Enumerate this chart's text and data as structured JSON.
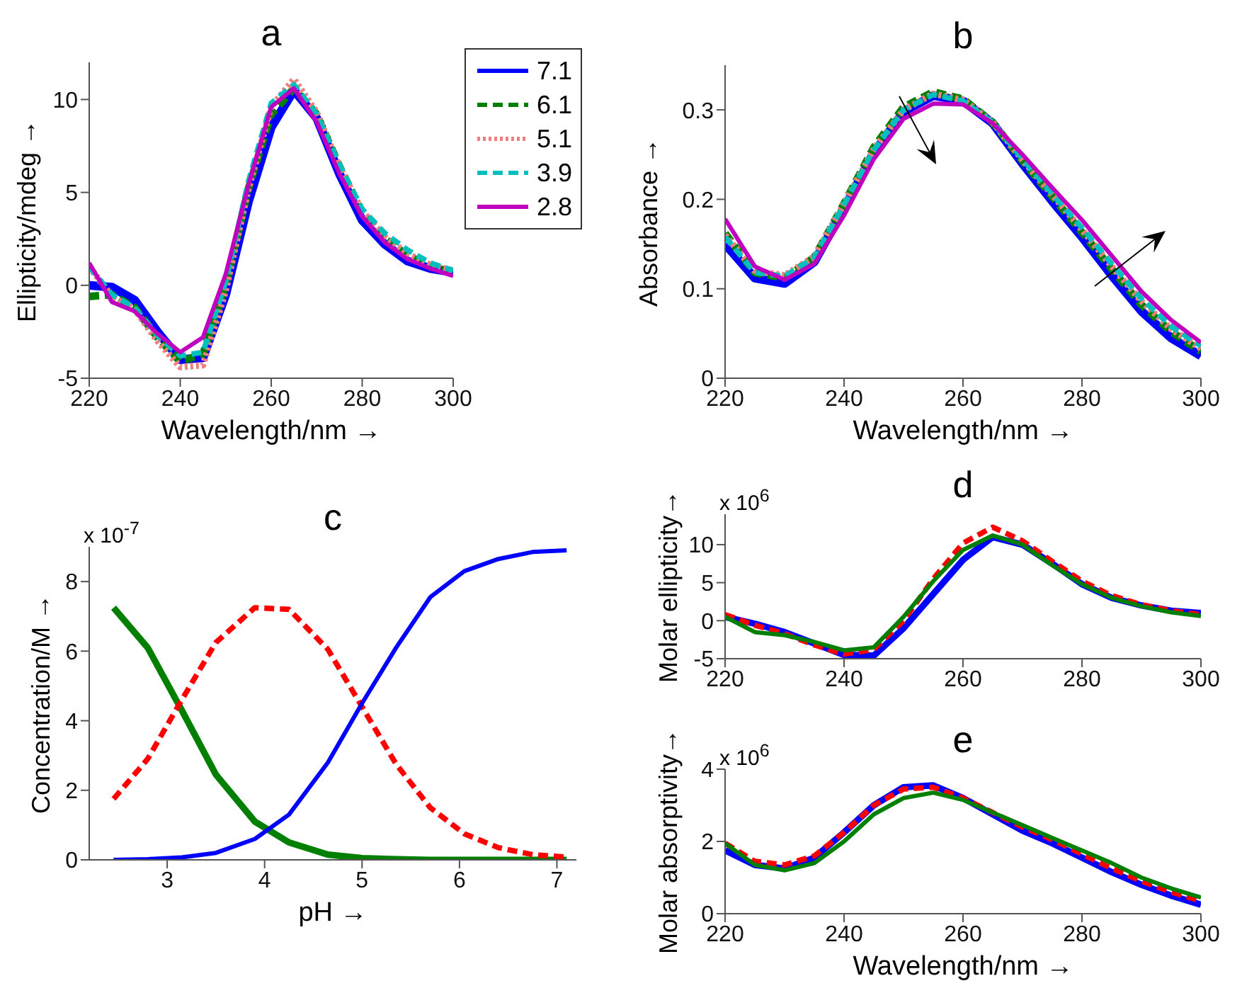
{
  "chart_data": [
    {
      "type": "line",
      "title": "a",
      "xlabel": "Wavelength/nm →",
      "ylabel": "Ellipticity/mdeg →",
      "x": [
        220,
        225,
        230,
        235,
        240,
        245,
        250,
        255,
        260,
        265,
        270,
        275,
        280,
        285,
        290,
        295,
        300
      ],
      "xlim": [
        220,
        300
      ],
      "xticks": [
        220,
        240,
        260,
        280,
        300
      ],
      "ylim": [
        -5,
        12
      ],
      "yticks": [
        -5,
        0,
        5,
        10
      ],
      "legend": "right",
      "series": [
        {
          "name": "7.1",
          "color": "#0000ff",
          "line_style": "solid",
          "values": [
            0,
            -0.1,
            -0.8,
            -2.5,
            -4.0,
            -3.9,
            -0.5,
            4.5,
            8.5,
            10.5,
            9.0,
            6.0,
            3.5,
            2.2,
            1.3,
            0.9,
            0.7
          ]
        },
        {
          "name": "6.1",
          "color": "#007f00",
          "line_style": "dashed",
          "values": [
            -0.6,
            -0.5,
            -1.2,
            -2.8,
            -4.1,
            -3.7,
            0,
            5.2,
            9.2,
            10.6,
            9.2,
            6.4,
            3.9,
            2.5,
            1.6,
            1.0,
            0.7
          ]
        },
        {
          "name": "5.1",
          "color": "#f08080",
          "line_style": "dotted",
          "values": [
            1,
            -0.6,
            -1.3,
            -3.0,
            -4.4,
            -4.3,
            -0.3,
            5.2,
            9.6,
            11.1,
            9.3,
            6.4,
            4.0,
            2.6,
            1.7,
            1.1,
            0.8
          ]
        },
        {
          "name": "3.9",
          "color": "#00bfbf",
          "line_style": "dashed",
          "values": [
            1,
            -0.5,
            -1.2,
            -2.7,
            -3.8,
            -3.6,
            0.2,
            5.6,
            9.8,
            10.8,
            9.2,
            6.5,
            4.1,
            2.8,
            1.9,
            1.2,
            0.8
          ]
        },
        {
          "name": "2.8",
          "color": "#bf00bf",
          "line_style": "solid",
          "values": [
            1.2,
            -0.9,
            -1.4,
            -2.6,
            -3.6,
            -2.8,
            0.6,
            5.4,
            9.6,
            10.6,
            8.8,
            6.0,
            3.7,
            2.3,
            1.4,
            0.9,
            0.5
          ]
        }
      ]
    },
    {
      "type": "line",
      "title": "b",
      "xlabel": "Wavelength/nm →",
      "ylabel": "Absorbance →",
      "x": [
        220,
        225,
        230,
        235,
        240,
        245,
        250,
        255,
        260,
        265,
        270,
        275,
        280,
        285,
        290,
        295,
        300
      ],
      "xlim": [
        220,
        300
      ],
      "xticks": [
        220,
        240,
        260,
        280,
        300
      ],
      "ylim": [
        0,
        0.35
      ],
      "yticks": [
        0,
        0.1,
        0.2,
        0.3
      ],
      "series": [
        {
          "color": "#0000ff",
          "line_style": "solid",
          "values": [
            0.15,
            0.112,
            0.106,
            0.13,
            0.19,
            0.252,
            0.298,
            0.316,
            0.31,
            0.285,
            0.24,
            0.198,
            0.158,
            0.115,
            0.075,
            0.045,
            0.025
          ]
        },
        {
          "color": "#007f00",
          "line_style": "dashed",
          "values": [
            0.162,
            0.118,
            0.112,
            0.135,
            0.195,
            0.258,
            0.303,
            0.32,
            0.312,
            0.286,
            0.243,
            0.203,
            0.163,
            0.122,
            0.082,
            0.052,
            0.03
          ]
        },
        {
          "color": "#f08080",
          "line_style": "dotted",
          "values": [
            0.16,
            0.12,
            0.115,
            0.136,
            0.195,
            0.256,
            0.3,
            0.318,
            0.311,
            0.286,
            0.244,
            0.205,
            0.166,
            0.125,
            0.086,
            0.055,
            0.033
          ]
        },
        {
          "color": "#00bfbf",
          "line_style": "dashed",
          "values": [
            0.158,
            0.118,
            0.114,
            0.135,
            0.194,
            0.255,
            0.3,
            0.317,
            0.31,
            0.286,
            0.245,
            0.206,
            0.168,
            0.128,
            0.089,
            0.058,
            0.036
          ]
        },
        {
          "color": "#bf00bf",
          "line_style": "solid",
          "values": [
            0.178,
            0.125,
            0.11,
            0.128,
            0.182,
            0.245,
            0.29,
            0.307,
            0.306,
            0.285,
            0.25,
            0.213,
            0.177,
            0.137,
            0.097,
            0.065,
            0.04
          ]
        }
      ]
    },
    {
      "type": "line",
      "title": "c",
      "xlabel": "pH →",
      "ylabel": "Concentration/M →",
      "annotations": [
        "x 10$^{-7}$"
      ],
      "x": [
        2.45,
        2.8,
        3.15,
        3.5,
        3.9,
        4.25,
        4.65,
        5.0,
        5.35,
        5.7,
        6.05,
        6.4,
        6.75,
        7.1
      ],
      "xlim": [
        2.2,
        7.2
      ],
      "xticks": [
        3,
        4,
        5,
        6,
        7
      ],
      "ylim": [
        0,
        9
      ],
      "yticks": [
        0,
        2,
        4,
        6,
        8
      ],
      "series": [
        {
          "color": "#007f00",
          "line_style": "solid",
          "values": [
            7.25,
            6.1,
            4.3,
            2.45,
            1.1,
            0.5,
            0.15,
            0.05,
            0.02,
            0,
            0,
            0,
            0,
            0
          ]
        },
        {
          "color": "#ff0000",
          "line_style": "dashed",
          "values": [
            1.75,
            2.9,
            4.6,
            6.25,
            7.25,
            7.2,
            6.05,
            4.4,
            2.75,
            1.5,
            0.75,
            0.35,
            0.15,
            0.08
          ]
        },
        {
          "color": "#0000ff",
          "line_style": "solid",
          "values": [
            0,
            0.02,
            0.07,
            0.2,
            0.6,
            1.3,
            2.8,
            4.5,
            6.1,
            7.55,
            8.3,
            8.65,
            8.85,
            8.9
          ]
        }
      ]
    },
    {
      "type": "line",
      "title": "d",
      "ylabel": "Molar ellipticity→",
      "annotations": [
        "x 10$^{6}$"
      ],
      "x": [
        220,
        225,
        230,
        235,
        240,
        245,
        250,
        255,
        260,
        265,
        270,
        275,
        280,
        285,
        290,
        295,
        300
      ],
      "xlim": [
        220,
        300
      ],
      "xticks": [
        220,
        240,
        260,
        280,
        300
      ],
      "ylim": [
        -5,
        14
      ],
      "yticks": [
        -5,
        0,
        5,
        10
      ],
      "series": [
        {
          "color": "#0000ff",
          "line_style": "solid",
          "values": [
            0.5,
            -0.4,
            -1.5,
            -3.0,
            -4.5,
            -4.6,
            -1.0,
            3.5,
            8.0,
            11.0,
            10.0,
            7.5,
            4.8,
            3.0,
            2.0,
            1.3,
            1.0
          ]
        },
        {
          "color": "#ff0000",
          "line_style": "dashed",
          "values": [
            0.8,
            -0.6,
            -1.7,
            -3.2,
            -4.4,
            -3.8,
            0,
            5.5,
            10.2,
            12.3,
            10.5,
            7.8,
            5.2,
            3.3,
            2.1,
            1.3,
            0.8
          ]
        },
        {
          "color": "#007f00",
          "line_style": "solid",
          "values": [
            0.5,
            -1.5,
            -1.9,
            -2.8,
            -3.9,
            -3.5,
            0.5,
            5.2,
            9.3,
            11.2,
            10.0,
            7.3,
            4.8,
            3.0,
            1.9,
            1.1,
            0.6
          ]
        }
      ]
    },
    {
      "type": "line",
      "title": "e",
      "xlabel": "Wavelength/nm →",
      "ylabel": "Molar absorptivity→",
      "annotations": [
        "x 10$^{6}$"
      ],
      "x": [
        220,
        225,
        230,
        235,
        240,
        245,
        250,
        255,
        260,
        265,
        270,
        275,
        280,
        285,
        290,
        295,
        300
      ],
      "xlim": [
        220,
        300
      ],
      "xticks": [
        220,
        240,
        260,
        280,
        300
      ],
      "ylim": [
        0,
        4
      ],
      "yticks": [
        0,
        2,
        4
      ],
      "series": [
        {
          "color": "#0000ff",
          "line_style": "solid",
          "values": [
            1.75,
            1.35,
            1.25,
            1.55,
            2.25,
            3.0,
            3.5,
            3.55,
            3.2,
            2.75,
            2.3,
            1.95,
            1.55,
            1.15,
            0.8,
            0.5,
            0.25
          ]
        },
        {
          "color": "#ff0000",
          "line_style": "dashed",
          "values": [
            1.95,
            1.45,
            1.35,
            1.6,
            2.25,
            3.0,
            3.45,
            3.5,
            3.2,
            2.8,
            2.4,
            2.05,
            1.65,
            1.25,
            0.9,
            0.6,
            0.35
          ]
        },
        {
          "color": "#007f00",
          "line_style": "solid",
          "values": [
            1.95,
            1.35,
            1.2,
            1.4,
            2.0,
            2.75,
            3.2,
            3.35,
            3.15,
            2.8,
            2.45,
            2.1,
            1.75,
            1.4,
            1.0,
            0.7,
            0.45
          ]
        }
      ]
    }
  ]
}
